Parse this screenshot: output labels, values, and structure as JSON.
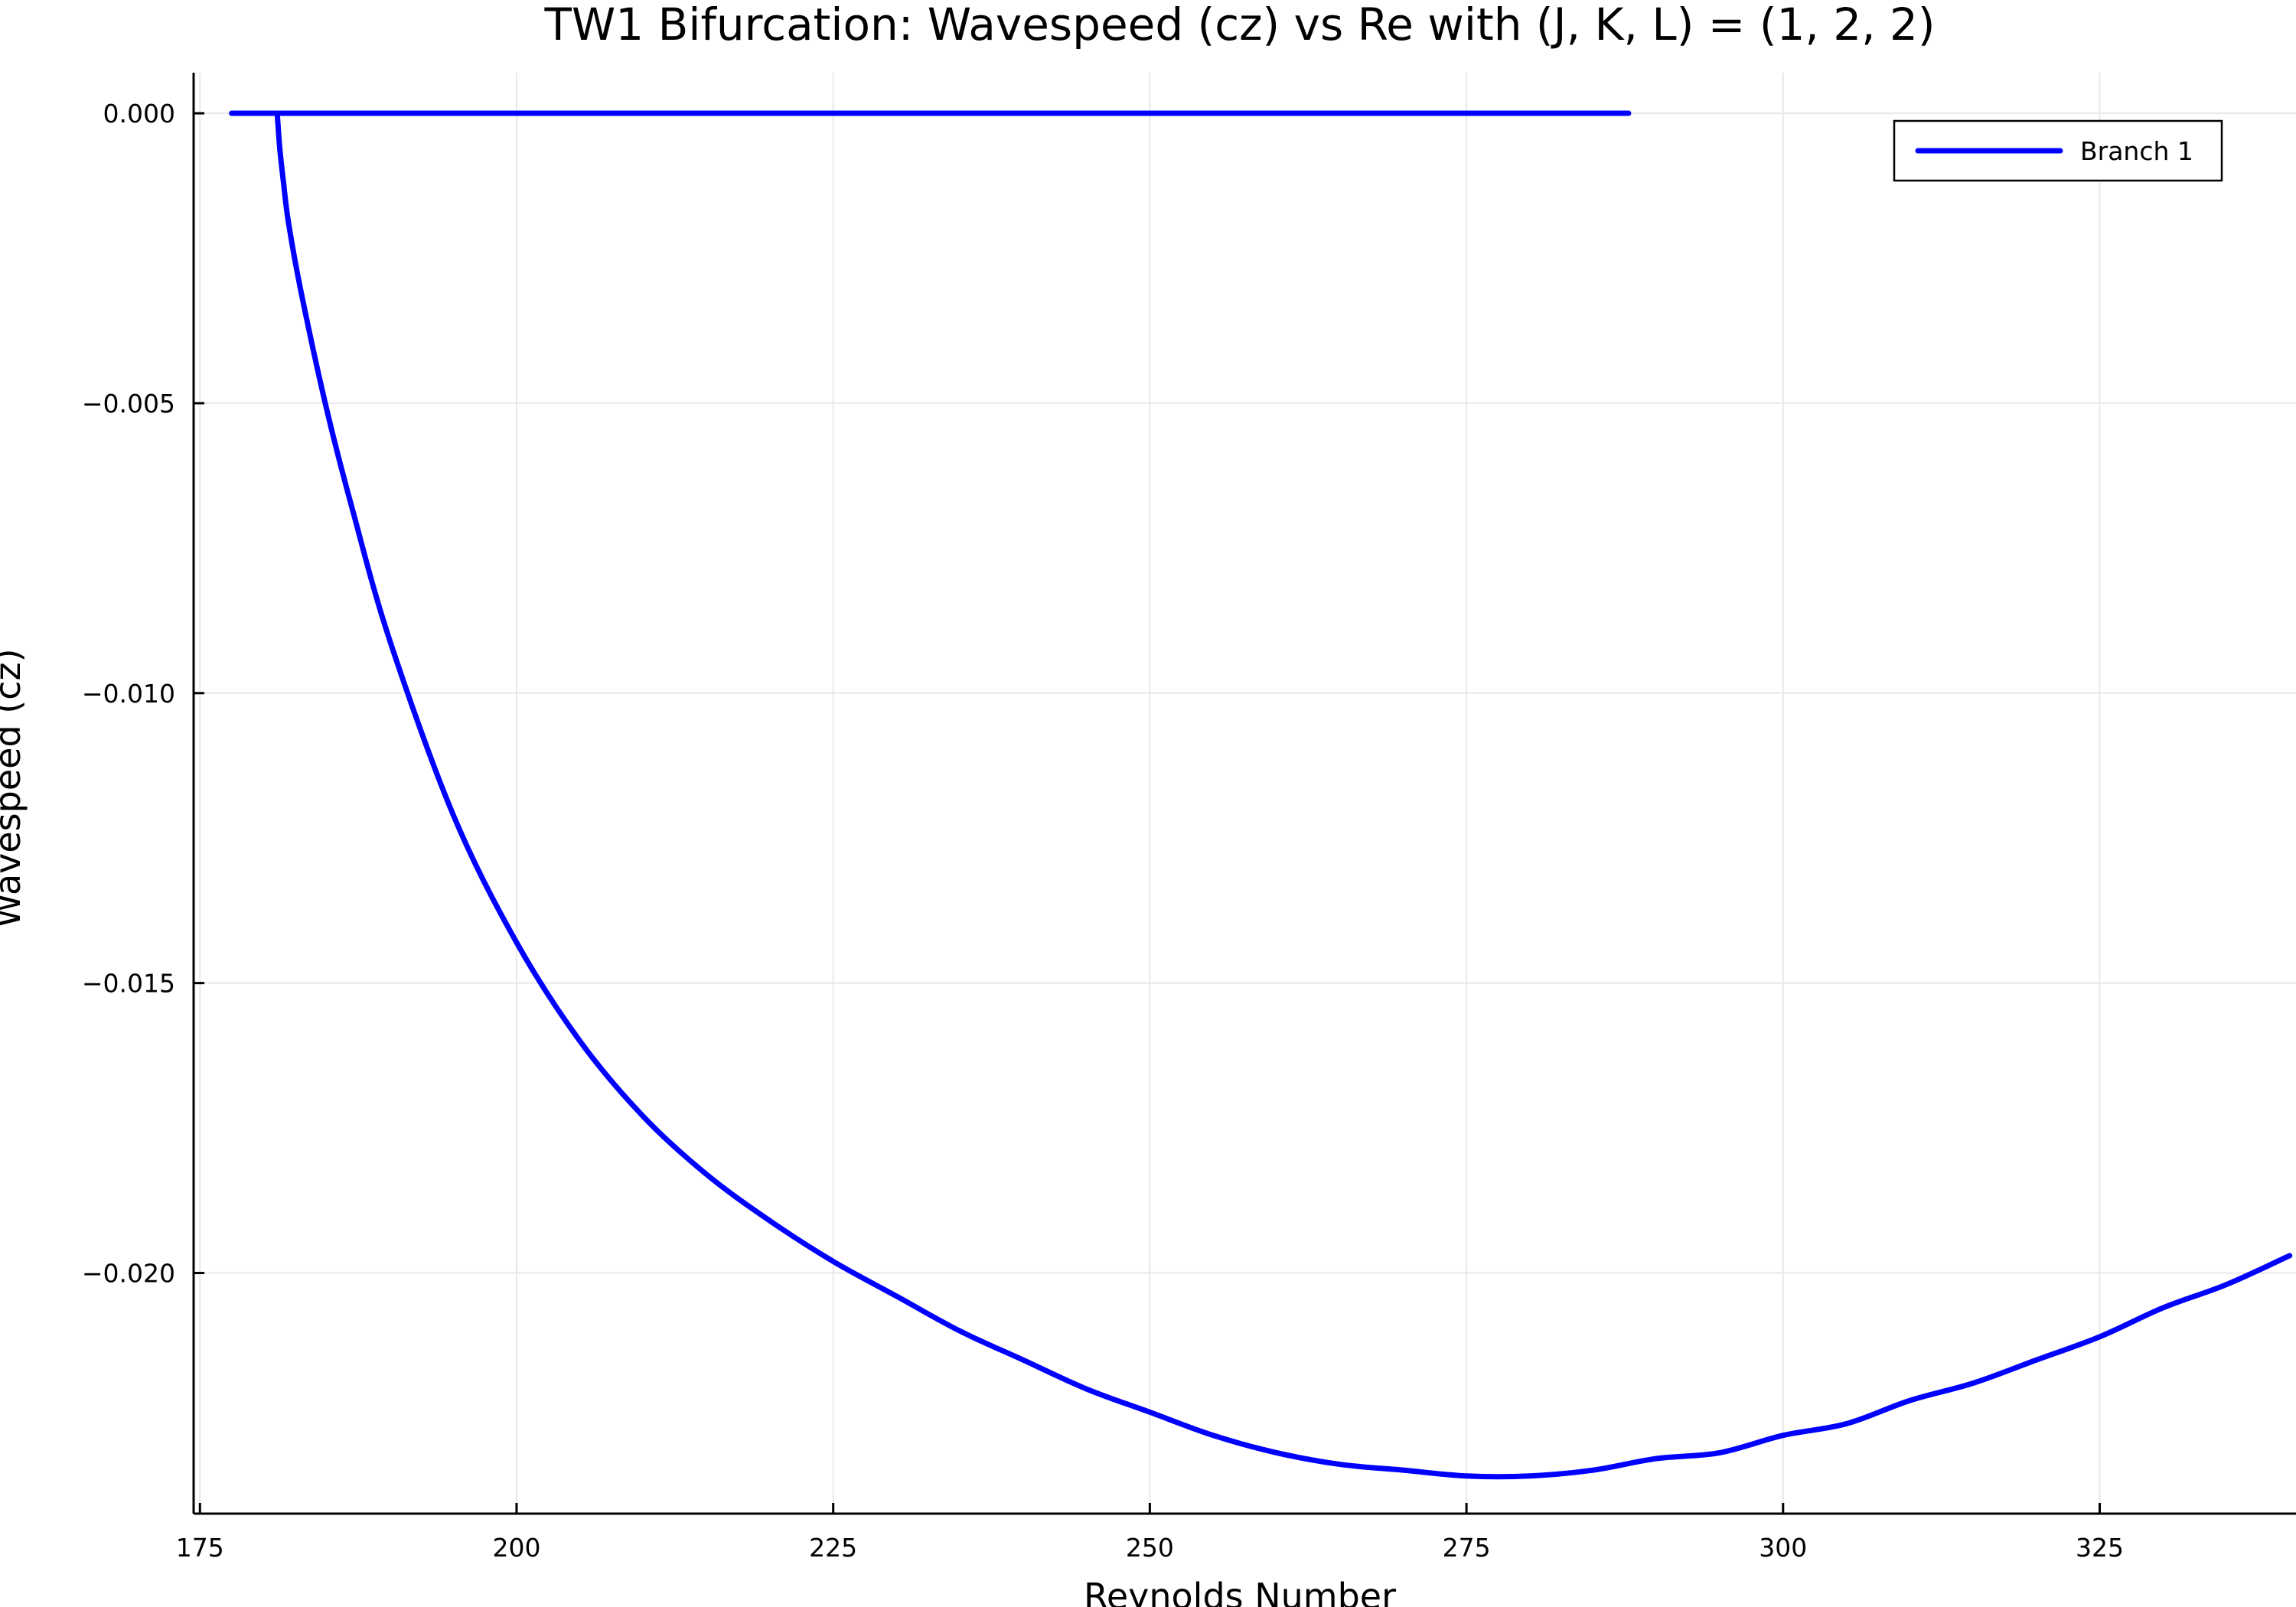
{
  "chart_data": {
    "type": "line",
    "title": "TW1 Bifurcation: Wavespeed (cz) vs Re with (J, K, L) = (1, 2, 2)",
    "xlabel": "Reynolds Number",
    "ylabel": "Wavespeed (cz)",
    "xlim": [
      174.5,
      340.5
    ],
    "ylim": [
      -0.02415,
      0.0007
    ],
    "x_ticks": [
      175,
      200,
      225,
      250,
      275,
      300,
      325
    ],
    "x_tick_labels": [
      "175",
      "200",
      "225",
      "250",
      "275",
      "300",
      "325"
    ],
    "y_ticks": [
      0.0,
      -0.005,
      -0.01,
      -0.015,
      -0.02
    ],
    "y_tick_labels": [
      "0.000",
      "−0.005",
      "−0.010",
      "−0.015",
      "−0.020"
    ],
    "grid": true,
    "legend_position": "top-right",
    "series": [
      {
        "name": "Branch 1",
        "color": "#0000ff",
        "segments": [
          {
            "x": [
              177.5,
              287.8
            ],
            "y": [
              0.0,
              0.0
            ]
          },
          {
            "x": [
              181.1,
              181.3,
              181.6,
              182.0,
              183.0,
              185.0,
              187.0,
              190.0,
              195.0,
              200.0,
              205.0,
              210.0,
              215.0,
              220.0,
              225.0,
              230.0,
              235.0,
              240.0,
              245.0,
              250.0,
              255.0,
              260.0,
              265.0,
              270.0,
              275.0,
              280.0,
              285.0,
              290.0,
              295.0,
              300.0,
              305.0,
              310.0,
              315.0,
              320.0,
              325.0,
              330.0,
              335.0,
              340.0
            ],
            "y": [
              0.0,
              -0.0006,
              -0.0012,
              -0.0019,
              -0.0031,
              -0.0051,
              -0.0068,
              -0.0091,
              -0.0121,
              -0.0143,
              -0.016,
              -0.0173,
              -0.0183,
              -0.0191,
              -0.0198,
              -0.0204,
              -0.021,
              -0.0215,
              -0.022,
              -0.0224,
              -0.0228,
              -0.0231,
              -0.0233,
              -0.0234,
              -0.0235,
              -0.0235,
              -0.0234,
              -0.0232,
              -0.0231,
              -0.0228,
              -0.0226,
              -0.0222,
              -0.0219,
              -0.0215,
              -0.0211,
              -0.0206,
              -0.0202,
              -0.0197
            ]
          }
        ]
      }
    ]
  }
}
